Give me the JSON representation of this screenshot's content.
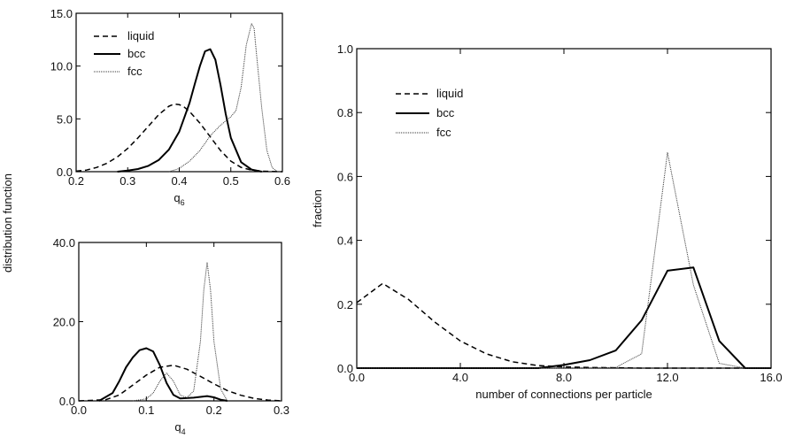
{
  "shared": {
    "ylabel": "distribution function"
  },
  "chart_data": [
    {
      "id": "q6",
      "type": "line",
      "xlabel": "q",
      "xlabel_sub": "6",
      "ylabel": "",
      "xlim": [
        0.2,
        0.6
      ],
      "ylim": [
        0,
        15
      ],
      "xticks": [
        0.2,
        0.3,
        0.4,
        0.5,
        0.6
      ],
      "xtick_labels": [
        "0.2",
        "0.3",
        "0.4",
        "0.5",
        "0.6"
      ],
      "yticks": [
        0,
        5,
        10,
        15
      ],
      "ytick_labels": [
        "0.0",
        "5.0",
        "10.0",
        "15.0"
      ],
      "legend": "top-left",
      "series": [
        {
          "name": "liquid",
          "style": "dashed",
          "x": [
            0.2,
            0.22,
            0.24,
            0.26,
            0.28,
            0.3,
            0.32,
            0.34,
            0.36,
            0.38,
            0.39,
            0.4,
            0.41,
            0.42,
            0.44,
            0.46,
            0.48,
            0.5,
            0.52,
            0.54,
            0.56,
            0.58,
            0.6
          ],
          "y": [
            0.05,
            0.15,
            0.4,
            0.8,
            1.4,
            2.2,
            3.2,
            4.3,
            5.4,
            6.2,
            6.4,
            6.35,
            6.1,
            5.7,
            4.6,
            3.3,
            2.0,
            1.0,
            0.4,
            0.15,
            0.05,
            0.02,
            0.0
          ]
        },
        {
          "name": "bcc",
          "style": "solid",
          "x": [
            0.28,
            0.3,
            0.32,
            0.34,
            0.36,
            0.38,
            0.4,
            0.42,
            0.43,
            0.44,
            0.45,
            0.46,
            0.47,
            0.48,
            0.49,
            0.5,
            0.52,
            0.54,
            0.56
          ],
          "y": [
            0.0,
            0.1,
            0.25,
            0.55,
            1.1,
            2.1,
            3.8,
            6.5,
            8.3,
            10.0,
            11.4,
            11.6,
            10.6,
            8.2,
            5.5,
            3.2,
            0.9,
            0.2,
            0.0
          ]
        },
        {
          "name": "fcc",
          "style": "dotted",
          "x": [
            0.38,
            0.4,
            0.42,
            0.44,
            0.46,
            0.48,
            0.5,
            0.51,
            0.52,
            0.53,
            0.54,
            0.545,
            0.55,
            0.56,
            0.57,
            0.58,
            0.59
          ],
          "y": [
            0.0,
            0.3,
            1.0,
            2.0,
            3.4,
            4.4,
            5.2,
            5.8,
            8.0,
            12.0,
            14.0,
            13.6,
            11.0,
            6.0,
            2.0,
            0.4,
            0.0
          ]
        }
      ]
    },
    {
      "id": "q4",
      "type": "line",
      "xlabel": "q",
      "xlabel_sub": "4",
      "ylabel": "",
      "xlim": [
        0.0,
        0.3
      ],
      "ylim": [
        0,
        40
      ],
      "xticks": [
        0.0,
        0.1,
        0.2,
        0.3
      ],
      "xtick_labels": [
        "0.0",
        "0.1",
        "0.2",
        "0.3"
      ],
      "yticks": [
        0,
        20,
        40
      ],
      "ytick_labels": [
        "0.0",
        "20.0",
        "40.0"
      ],
      "series": [
        {
          "name": "liquid",
          "style": "dashed",
          "x": [
            0.0,
            0.04,
            0.06,
            0.08,
            0.1,
            0.12,
            0.14,
            0.16,
            0.18,
            0.2,
            0.22,
            0.24,
            0.26,
            0.28,
            0.3
          ],
          "y": [
            0.0,
            0.3,
            1.5,
            4.0,
            6.5,
            8.5,
            9.0,
            8.0,
            6.2,
            4.3,
            2.6,
            1.4,
            0.6,
            0.2,
            0.0
          ]
        },
        {
          "name": "bcc",
          "style": "solid",
          "x": [
            0.03,
            0.05,
            0.06,
            0.07,
            0.08,
            0.09,
            0.1,
            0.11,
            0.12,
            0.13,
            0.14,
            0.15,
            0.17,
            0.19,
            0.2,
            0.21,
            0.22
          ],
          "y": [
            0.0,
            2.0,
            5.0,
            8.5,
            11.0,
            12.8,
            13.3,
            12.5,
            9.0,
            4.5,
            1.5,
            0.6,
            0.8,
            1.2,
            0.9,
            0.3,
            0.0
          ]
        },
        {
          "name": "fcc",
          "style": "dotted",
          "x": [
            0.08,
            0.1,
            0.11,
            0.12,
            0.13,
            0.14,
            0.15,
            0.16,
            0.17,
            0.18,
            0.185,
            0.19,
            0.195,
            0.2,
            0.21,
            0.22
          ],
          "y": [
            0.0,
            0.5,
            2.0,
            5.0,
            7.0,
            5.0,
            1.5,
            0.8,
            2.5,
            15.0,
            28.0,
            35.0,
            28.0,
            15.0,
            3.0,
            0.0
          ]
        }
      ]
    },
    {
      "id": "connections",
      "type": "line",
      "xlabel": "number of connections per particle",
      "ylabel": "fraction",
      "xlim": [
        0,
        16
      ],
      "ylim": [
        0,
        1.0
      ],
      "xticks": [
        0,
        4,
        8,
        12,
        16
      ],
      "xtick_labels": [
        "0.0",
        "4.0",
        "8.0",
        "12.0",
        "16.0"
      ],
      "yticks": [
        0,
        0.2,
        0.4,
        0.6,
        0.8,
        1.0
      ],
      "ytick_labels": [
        "0.0",
        "0.2",
        "0.4",
        "0.6",
        "0.8",
        "1.0"
      ],
      "legend": "top-left",
      "series": [
        {
          "name": "liquid",
          "style": "dashed",
          "x": [
            0,
            1,
            2,
            3,
            4,
            5,
            6,
            7,
            8,
            9,
            10,
            11,
            12,
            13,
            14,
            15,
            16
          ],
          "y": [
            0.205,
            0.265,
            0.215,
            0.145,
            0.085,
            0.045,
            0.02,
            0.008,
            0.004,
            0.002,
            0.001,
            0.0,
            0.0,
            0.0,
            0.0,
            0.0,
            0.0
          ]
        },
        {
          "name": "bcc",
          "style": "solid",
          "x": [
            0,
            1,
            2,
            3,
            4,
            5,
            6,
            7,
            8,
            9,
            10,
            11,
            12,
            13,
            14,
            15,
            16
          ],
          "y": [
            0,
            0,
            0,
            0,
            0,
            0,
            0,
            0,
            0.01,
            0.025,
            0.055,
            0.15,
            0.305,
            0.315,
            0.085,
            0.0,
            0.0
          ]
        },
        {
          "name": "fcc",
          "style": "dotted",
          "x": [
            0,
            1,
            2,
            3,
            4,
            5,
            6,
            7,
            8,
            9,
            10,
            11,
            12,
            13,
            14,
            15,
            16
          ],
          "y": [
            0,
            0,
            0,
            0,
            0,
            0,
            0,
            0,
            0,
            0,
            0.002,
            0.045,
            0.675,
            0.26,
            0.015,
            0.0,
            0.0
          ]
        }
      ]
    }
  ]
}
